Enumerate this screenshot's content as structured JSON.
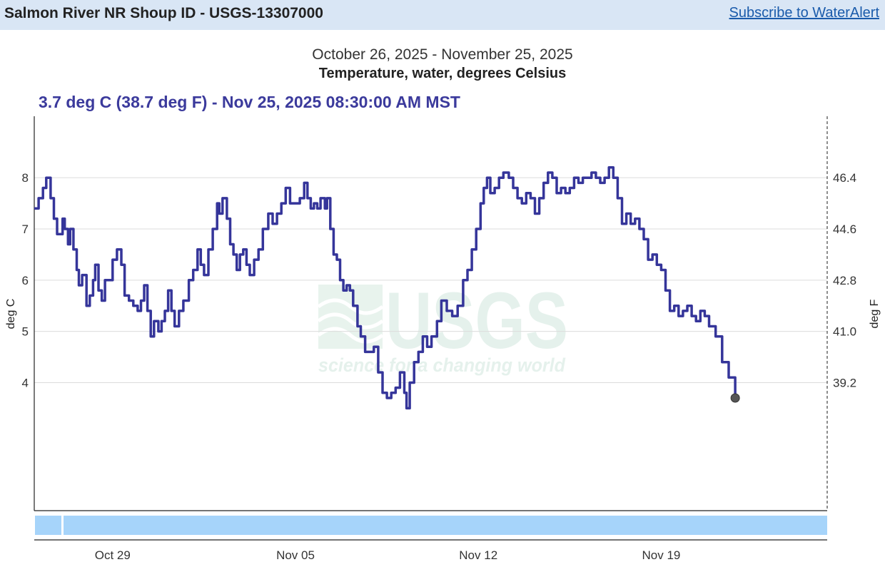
{
  "header": {
    "site_title": "Salmon River NR Shoup ID - USGS-13307000",
    "subscribe_label": "Subscribe to WaterAlert"
  },
  "watermark": {
    "logo": "USGS",
    "tagline": "science for a changing world"
  },
  "colors": {
    "series": "#35359a",
    "header_bg": "#d9e6f5",
    "brush": "#a6d4fa",
    "link": "#1a5bab"
  },
  "chart_data": {
    "type": "line",
    "title": "October 26, 2025 - November 25, 2025",
    "subtitle": "Temperature, water, degrees Celsius",
    "current_reading": "3.7 deg C (38.7 deg F) - Nov 25, 2025 08:30:00 AM MST",
    "ylabel": "deg C",
    "ylabel_right": "deg F",
    "ylim": [
      1.5,
      9.2
    ],
    "xlim": [
      "2025-10-26T00:00",
      "2025-11-25T08:30"
    ],
    "y_ticks": [
      4,
      5,
      6,
      7,
      8
    ],
    "y_tick_labels": [
      "4",
      "5",
      "6",
      "7",
      "8"
    ],
    "y2_ticks": [
      39.2,
      41.0,
      42.8,
      44.6,
      46.4
    ],
    "y2_tick_labels": [
      "39.2",
      "41.0",
      "42.8",
      "44.6",
      "46.4"
    ],
    "x_tick_labels": [
      {
        "date": "2025-10-29",
        "label": "Oct 29"
      },
      {
        "date": "2025-11-05",
        "label": "Nov 05"
      },
      {
        "date": "2025-11-12",
        "label": "Nov 12"
      },
      {
        "date": "2025-11-19",
        "label": "Nov 19"
      }
    ],
    "grid": "horizontal",
    "series": [
      {
        "points": [
          [
            "2025-10-26T00:00",
            7.4
          ],
          [
            "2025-10-26T04:00",
            7.6
          ],
          [
            "2025-10-26T08:00",
            7.8
          ],
          [
            "2025-10-26T11:00",
            8.0
          ],
          [
            "2025-10-26T15:00",
            7.6
          ],
          [
            "2025-10-26T18:00",
            7.2
          ],
          [
            "2025-10-26T21:00",
            6.9
          ],
          [
            "2025-10-27T02:00",
            7.2
          ],
          [
            "2025-10-27T04:00",
            7.0
          ],
          [
            "2025-10-27T07:00",
            6.7
          ],
          [
            "2025-10-27T09:00",
            7.0
          ],
          [
            "2025-10-27T12:00",
            6.6
          ],
          [
            "2025-10-27T15:00",
            6.2
          ],
          [
            "2025-10-27T17:00",
            5.9
          ],
          [
            "2025-10-27T20:00",
            6.1
          ],
          [
            "2025-10-28T00:00",
            5.5
          ],
          [
            "2025-10-28T03:00",
            5.7
          ],
          [
            "2025-10-28T06:00",
            6.0
          ],
          [
            "2025-10-28T08:00",
            6.3
          ],
          [
            "2025-10-28T11:00",
            5.8
          ],
          [
            "2025-10-28T14:00",
            5.6
          ],
          [
            "2025-10-28T17:00",
            6.0
          ],
          [
            "2025-10-28T20:00",
            6.0
          ],
          [
            "2025-10-29T00:00",
            6.4
          ],
          [
            "2025-10-29T04:00",
            6.6
          ],
          [
            "2025-10-29T08:00",
            6.3
          ],
          [
            "2025-10-29T11:00",
            5.7
          ],
          [
            "2025-10-29T15:00",
            5.6
          ],
          [
            "2025-10-29T19:00",
            5.5
          ],
          [
            "2025-10-29T23:00",
            5.4
          ],
          [
            "2025-10-30T02:00",
            5.6
          ],
          [
            "2025-10-30T05:00",
            5.9
          ],
          [
            "2025-10-30T08:00",
            5.4
          ],
          [
            "2025-10-30T11:00",
            4.9
          ],
          [
            "2025-10-30T14:00",
            5.2
          ],
          [
            "2025-10-30T18:00",
            5.0
          ],
          [
            "2025-10-30T21:00",
            5.2
          ],
          [
            "2025-10-31T00:00",
            5.4
          ],
          [
            "2025-10-31T03:00",
            5.8
          ],
          [
            "2025-10-31T06:00",
            5.4
          ],
          [
            "2025-10-31T09:00",
            5.1
          ],
          [
            "2025-10-31T13:00",
            5.4
          ],
          [
            "2025-10-31T17:00",
            5.6
          ],
          [
            "2025-10-31T22:00",
            6.0
          ],
          [
            "2025-11-01T02:00",
            6.2
          ],
          [
            "2025-11-01T06:00",
            6.6
          ],
          [
            "2025-11-01T09:00",
            6.3
          ],
          [
            "2025-11-01T12:00",
            6.1
          ],
          [
            "2025-11-01T16:00",
            6.6
          ],
          [
            "2025-11-01T20:00",
            7.0
          ],
          [
            "2025-11-02T00:00",
            7.5
          ],
          [
            "2025-11-02T02:00",
            7.3
          ],
          [
            "2025-11-02T05:00",
            7.6
          ],
          [
            "2025-11-02T09:00",
            7.2
          ],
          [
            "2025-11-02T12:00",
            6.7
          ],
          [
            "2025-11-02T15:00",
            6.5
          ],
          [
            "2025-11-02T18:00",
            6.2
          ],
          [
            "2025-11-02T21:00",
            6.5
          ],
          [
            "2025-11-03T00:00",
            6.6
          ],
          [
            "2025-11-03T03:00",
            6.3
          ],
          [
            "2025-11-03T06:00",
            6.1
          ],
          [
            "2025-11-03T10:00",
            6.4
          ],
          [
            "2025-11-03T14:00",
            6.6
          ],
          [
            "2025-11-03T18:00",
            7.0
          ],
          [
            "2025-11-03T23:00",
            7.3
          ],
          [
            "2025-11-04T03:00",
            7.1
          ],
          [
            "2025-11-04T07:00",
            7.3
          ],
          [
            "2025-11-04T11:00",
            7.5
          ],
          [
            "2025-11-04T15:00",
            7.8
          ],
          [
            "2025-11-04T19:00",
            7.5
          ],
          [
            "2025-11-05T00:00",
            7.5
          ],
          [
            "2025-11-05T04:00",
            7.6
          ],
          [
            "2025-11-05T08:00",
            7.9
          ],
          [
            "2025-11-05T11:00",
            7.6
          ],
          [
            "2025-11-05T14:00",
            7.4
          ],
          [
            "2025-11-05T17:00",
            7.5
          ],
          [
            "2025-11-05T20:00",
            7.4
          ],
          [
            "2025-11-05T23:00",
            7.6
          ],
          [
            "2025-11-06T03:00",
            7.4
          ],
          [
            "2025-11-06T05:00",
            7.6
          ],
          [
            "2025-11-06T08:00",
            7.0
          ],
          [
            "2025-11-06T11:00",
            6.5
          ],
          [
            "2025-11-06T14:00",
            6.4
          ],
          [
            "2025-11-06T17:00",
            6.0
          ],
          [
            "2025-11-06T20:00",
            5.8
          ],
          [
            "2025-11-06T23:00",
            5.9
          ],
          [
            "2025-11-07T02:00",
            5.8
          ],
          [
            "2025-11-07T05:00",
            5.5
          ],
          [
            "2025-11-07T09:00",
            5.1
          ],
          [
            "2025-11-07T12:00",
            4.9
          ],
          [
            "2025-11-07T16:00",
            4.6
          ],
          [
            "2025-11-07T20:00",
            4.6
          ],
          [
            "2025-11-08T00:00",
            4.7
          ],
          [
            "2025-11-08T04:00",
            4.2
          ],
          [
            "2025-11-08T08:00",
            3.8
          ],
          [
            "2025-11-08T12:00",
            3.7
          ],
          [
            "2025-11-08T16:00",
            3.8
          ],
          [
            "2025-11-08T20:00",
            3.9
          ],
          [
            "2025-11-09T00:00",
            4.2
          ],
          [
            "2025-11-09T04:00",
            3.8
          ],
          [
            "2025-11-09T06:00",
            3.5
          ],
          [
            "2025-11-09T09:00",
            4.0
          ],
          [
            "2025-11-09T13:00",
            4.4
          ],
          [
            "2025-11-09T17:00",
            4.6
          ],
          [
            "2025-11-09T21:00",
            4.9
          ],
          [
            "2025-11-10T01:00",
            4.7
          ],
          [
            "2025-11-10T05:00",
            4.9
          ],
          [
            "2025-11-10T10:00",
            5.2
          ],
          [
            "2025-11-10T14:00",
            5.6
          ],
          [
            "2025-11-10T19:00",
            5.4
          ],
          [
            "2025-11-11T00:00",
            5.3
          ],
          [
            "2025-11-11T05:00",
            5.5
          ],
          [
            "2025-11-11T10:00",
            6.0
          ],
          [
            "2025-11-11T14:00",
            6.2
          ],
          [
            "2025-11-11T18:00",
            6.6
          ],
          [
            "2025-11-11T22:00",
            7.0
          ],
          [
            "2025-11-12T02:00",
            7.5
          ],
          [
            "2025-11-12T05:00",
            7.8
          ],
          [
            "2025-11-12T08:00",
            8.0
          ],
          [
            "2025-11-12T11:00",
            7.7
          ],
          [
            "2025-11-12T15:00",
            7.8
          ],
          [
            "2025-11-12T19:00",
            8.0
          ],
          [
            "2025-11-12T23:00",
            8.1
          ],
          [
            "2025-11-13T04:00",
            8.0
          ],
          [
            "2025-11-13T08:00",
            7.8
          ],
          [
            "2025-11-13T12:00",
            7.6
          ],
          [
            "2025-11-13T16:00",
            7.5
          ],
          [
            "2025-11-13T20:00",
            7.7
          ],
          [
            "2025-11-14T00:00",
            7.6
          ],
          [
            "2025-11-14T04:00",
            7.3
          ],
          [
            "2025-11-14T08:00",
            7.6
          ],
          [
            "2025-11-14T12:00",
            7.9
          ],
          [
            "2025-11-14T16:00",
            8.1
          ],
          [
            "2025-11-14T20:00",
            8.0
          ],
          [
            "2025-11-15T00:00",
            7.7
          ],
          [
            "2025-11-15T04:00",
            7.8
          ],
          [
            "2025-11-15T08:00",
            7.7
          ],
          [
            "2025-11-15T12:00",
            7.8
          ],
          [
            "2025-11-15T16:00",
            8.0
          ],
          [
            "2025-11-15T20:00",
            7.9
          ],
          [
            "2025-11-16T00:00",
            8.0
          ],
          [
            "2025-11-16T04:00",
            8.0
          ],
          [
            "2025-11-16T08:00",
            8.1
          ],
          [
            "2025-11-16T12:00",
            8.0
          ],
          [
            "2025-11-16T16:00",
            7.9
          ],
          [
            "2025-11-16T20:00",
            8.0
          ],
          [
            "2025-11-17T00:00",
            8.2
          ],
          [
            "2025-11-17T04:00",
            8.0
          ],
          [
            "2025-11-17T08:00",
            7.6
          ],
          [
            "2025-11-17T12:00",
            7.1
          ],
          [
            "2025-11-17T16:00",
            7.3
          ],
          [
            "2025-11-17T20:00",
            7.1
          ],
          [
            "2025-11-18T00:00",
            7.2
          ],
          [
            "2025-11-18T04:00",
            7.0
          ],
          [
            "2025-11-18T08:00",
            6.8
          ],
          [
            "2025-11-18T12:00",
            6.4
          ],
          [
            "2025-11-18T16:00",
            6.5
          ],
          [
            "2025-11-18T20:00",
            6.3
          ],
          [
            "2025-11-19T00:00",
            6.2
          ],
          [
            "2025-11-19T04:00",
            5.8
          ],
          [
            "2025-11-19T08:00",
            5.4
          ],
          [
            "2025-11-19T12:00",
            5.5
          ],
          [
            "2025-11-19T16:00",
            5.3
          ],
          [
            "2025-11-19T20:00",
            5.4
          ],
          [
            "2025-11-20T00:00",
            5.5
          ],
          [
            "2025-11-20T04:00",
            5.3
          ],
          [
            "2025-11-20T08:00",
            5.2
          ],
          [
            "2025-11-20T12:00",
            5.4
          ],
          [
            "2025-11-20T16:00",
            5.3
          ],
          [
            "2025-11-20T20:00",
            5.1
          ],
          [
            "2025-11-21T02:00",
            4.9
          ],
          [
            "2025-11-21T08:00",
            4.4
          ],
          [
            "2025-11-21T14:00",
            4.1
          ],
          [
            "2025-11-21T20:00",
            3.7
          ]
        ]
      }
    ]
  }
}
